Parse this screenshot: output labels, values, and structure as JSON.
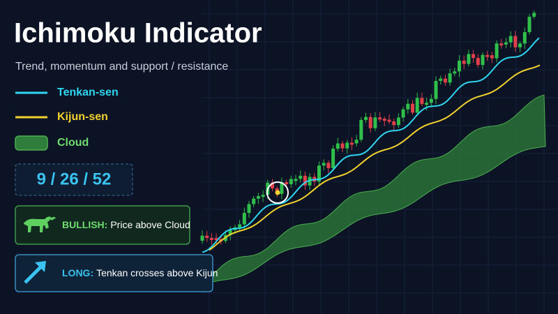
{
  "title": "Ichimoku Indicator",
  "subtitle": "Trend, momentum and support / resistance",
  "legend": [
    {
      "label": "Tenkan-sen",
      "color": "#2fd6f2"
    },
    {
      "label": "Kijun-sen",
      "color": "#f2d22e"
    },
    {
      "label": "Cloud",
      "color": "#2f7d3a"
    }
  ],
  "settings": "9 / 26 / 52",
  "signals": [
    {
      "label": "BULLISH:",
      "text": "Price above Cloud"
    },
    {
      "label": "LONG:",
      "text": "Tenkan crosses above Kijun"
    }
  ]
}
